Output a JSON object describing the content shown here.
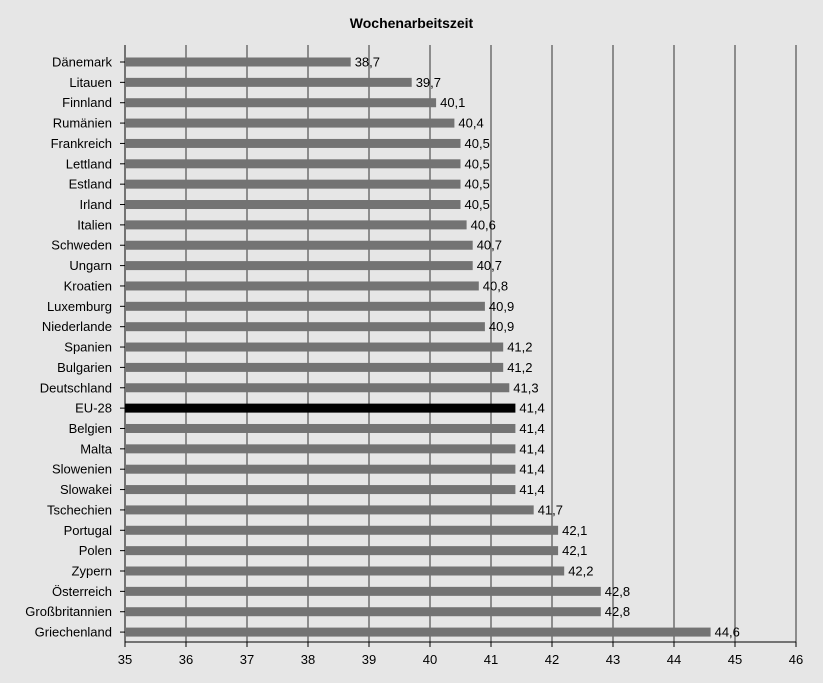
{
  "chart_data": {
    "type": "bar",
    "orientation": "horizontal",
    "title": "Wochenarbeitszeit",
    "xlabel": "",
    "ylabel": "",
    "xlim": [
      35,
      46
    ],
    "x_ticks": [
      "35",
      "36",
      "37",
      "38",
      "39",
      "40",
      "41",
      "42",
      "43",
      "44",
      "45",
      "46"
    ],
    "grid": true,
    "categories": [
      "Dänemark",
      "Litauen",
      "Finnland",
      "Rumänien",
      "Frankreich",
      "Lettland",
      "Estland",
      "Irland",
      "Italien",
      "Schweden",
      "Ungarn",
      "Kroatien",
      "Luxemburg",
      "Niederlande",
      "Spanien",
      "Bulgarien",
      "Deutschland",
      "EU-28",
      "Belgien",
      "Malta",
      "Slowenien",
      "Slowakei",
      "Tschechien",
      "Portugal",
      "Polen",
      "Zypern",
      "Österreich",
      "Großbritannien",
      "Griechenland"
    ],
    "values": [
      38.7,
      39.7,
      40.1,
      40.4,
      40.5,
      40.5,
      40.5,
      40.5,
      40.6,
      40.7,
      40.7,
      40.8,
      40.9,
      40.9,
      41.2,
      41.2,
      41.3,
      41.4,
      41.4,
      41.4,
      41.4,
      41.4,
      41.7,
      42.1,
      42.1,
      42.2,
      42.8,
      42.8,
      44.6
    ],
    "value_labels": [
      "38,7",
      "39,7",
      "40,1",
      "40,4",
      "40,5",
      "40,5",
      "40,5",
      "40,5",
      "40,6",
      "40,7",
      "40,7",
      "40,8",
      "40,9",
      "40,9",
      "41,2",
      "41,2",
      "41,3",
      "41,4",
      "41,4",
      "41,4",
      "41,4",
      "41,4",
      "41,7",
      "42,1",
      "42,1",
      "42,2",
      "42,8",
      "42,8",
      "44,6"
    ],
    "highlight": "EU-28",
    "colors": {
      "bar": "#737373",
      "highlight": "#000000",
      "background": "#e6e6e6",
      "grid": "#333333"
    }
  }
}
